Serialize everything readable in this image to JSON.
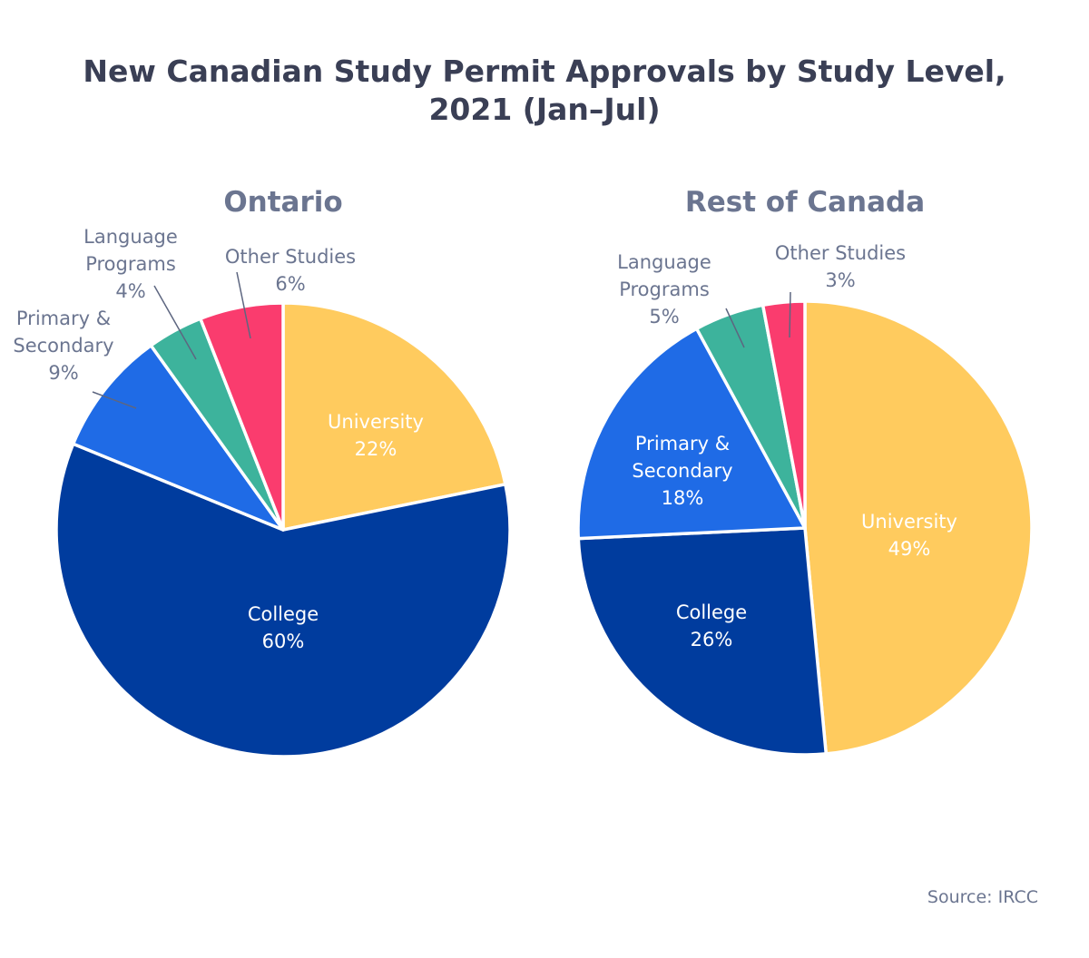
{
  "title_line1": "New Canadian Study Permit Approvals by Study Level,",
  "title_line2": "2021 (Jan–Jul)",
  "source": "Source: IRCC",
  "colors": {
    "University": "#ffcb5e",
    "College": "#003c9e",
    "Primary & Secondary": "#1f6be6",
    "Language Programs": "#3db39c",
    "Other Studies": "#fa3c6e"
  },
  "chart_data": [
    {
      "type": "pie",
      "title": "Ontario",
      "start": "12 o'clock, clockwise",
      "slices": [
        {
          "label": "University",
          "value": 22,
          "value_label": "22%"
        },
        {
          "label": "College",
          "value": 60,
          "value_label": "60%"
        },
        {
          "label": "Primary & Secondary",
          "value": 9,
          "value_label": "9%"
        },
        {
          "label": "Language Programs",
          "value": 4,
          "value_label": "4%"
        },
        {
          "label": "Other Studies",
          "value": 6,
          "value_label": "6%"
        }
      ]
    },
    {
      "type": "pie",
      "title": "Rest of Canada",
      "start": "12 o'clock, clockwise",
      "slices": [
        {
          "label": "University",
          "value": 49,
          "value_label": "49%"
        },
        {
          "label": "College",
          "value": 26,
          "value_label": "26%"
        },
        {
          "label": "Primary & Secondary",
          "value": 18,
          "value_label": "18%"
        },
        {
          "label": "Language Programs",
          "value": 5,
          "value_label": "5%"
        },
        {
          "label": "Other Studies",
          "value": 3,
          "value_label": "3%"
        }
      ]
    }
  ]
}
